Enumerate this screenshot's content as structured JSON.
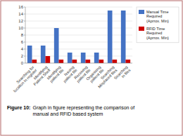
{
  "chart_data": {
    "type": "bar",
    "categories": [
      "Searching for\nlocation in register",
      "Identifying\nPatient Shelf",
      "Identifying\npatient file",
      "Issuing\npatient file",
      "Receiving\npatient file",
      "Organising\npatient file",
      "Searching\nMisplaced files",
      "Searching\nin files"
    ],
    "series": [
      {
        "name": "Manual Time\nRequired\n(Aprrox. Min)",
        "color": "#4472C4",
        "values": [
          5,
          5,
          10,
          3,
          3,
          3,
          15,
          15
        ]
      },
      {
        "name": "RFID Time\nRequired\n(Aprrox. Min)",
        "color": "#CC0000",
        "values": [
          1,
          2,
          1,
          1,
          1,
          1,
          1,
          1
        ]
      }
    ],
    "ylim": [
      0,
      16
    ],
    "yticks": [
      0,
      2,
      4,
      6,
      8,
      10,
      12,
      14,
      16
    ],
    "grid": true,
    "legend": "right",
    "annotations": [
      "Figure 10:",
      "Graph in figure representing the comparison of\nmanual and RFID based system"
    ]
  }
}
